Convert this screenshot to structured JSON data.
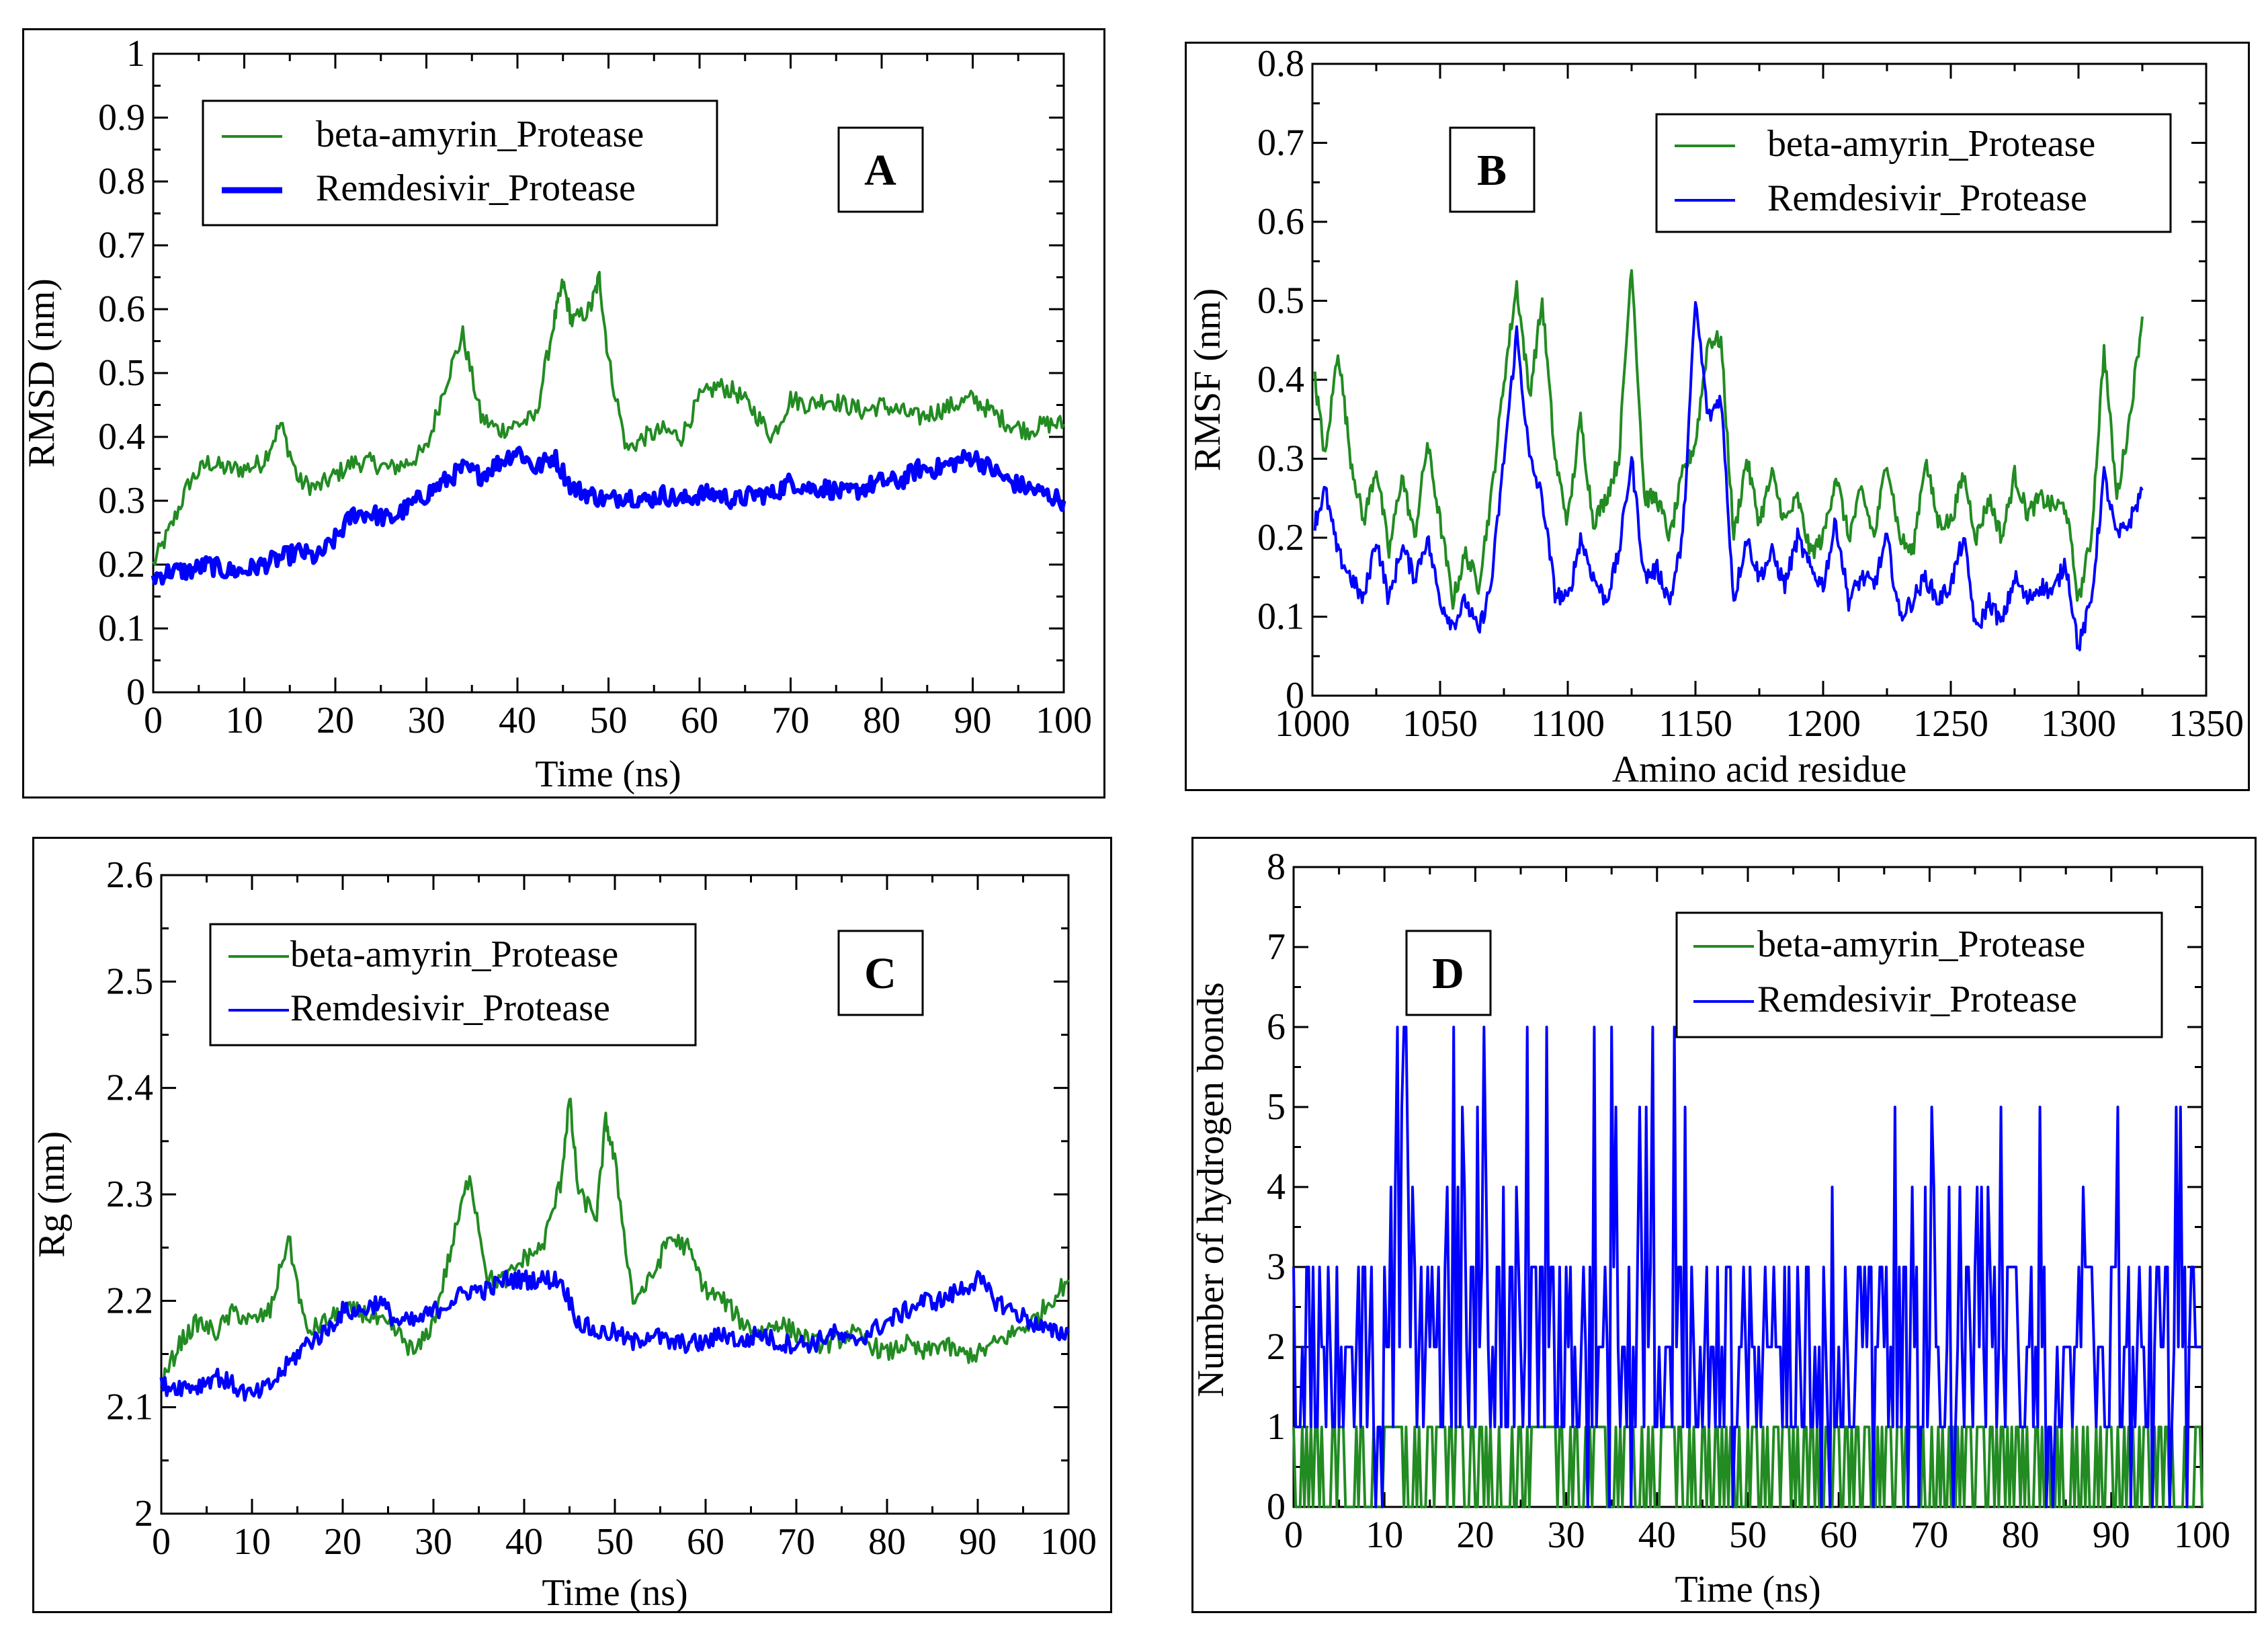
{
  "colors": {
    "green": "#228b22",
    "blue": "#0000ff",
    "axis": "#000000"
  },
  "chart_data": [
    {
      "id": "A",
      "type": "line",
      "panel_label": "A",
      "xlabel": "Time (ns)",
      "ylabel": "RMSD (nm)",
      "xlim": [
        0,
        100
      ],
      "ylim": [
        0,
        1
      ],
      "xticks": [
        0,
        10,
        20,
        30,
        40,
        50,
        60,
        70,
        80,
        90,
        100
      ],
      "xtick_labels": [
        "0",
        "10",
        "20",
        "30",
        "40",
        "50",
        "60",
        "70",
        "80",
        "90",
        "100"
      ],
      "yticks": [
        0,
        0.1,
        0.2,
        0.3,
        0.4,
        0.5,
        0.6,
        0.7,
        0.8,
        0.9,
        1
      ],
      "ytick_labels": [
        "0",
        "0.1",
        "0.2",
        "0.3",
        "0.4",
        "0.5",
        "0.6",
        "0.7",
        "0.8",
        "0.9",
        "1"
      ],
      "legend": "top-left",
      "series": [
        {
          "name": "beta-amyrin_Protease",
          "color": "#228b22",
          "x": [
            0,
            2,
            4,
            6,
            8,
            10,
            12,
            14,
            16,
            18,
            20,
            22,
            24,
            26,
            28,
            30,
            32,
            34,
            36,
            38,
            40,
            42,
            44,
            45,
            46,
            48,
            49,
            50,
            52,
            54,
            56,
            58,
            60,
            62,
            64,
            66,
            68,
            70,
            72,
            74,
            76,
            78,
            80,
            82,
            84,
            86,
            88,
            90,
            92,
            94,
            96,
            98,
            100
          ],
          "y": [
            0.2,
            0.26,
            0.33,
            0.36,
            0.35,
            0.35,
            0.36,
            0.42,
            0.33,
            0.32,
            0.34,
            0.36,
            0.36,
            0.35,
            0.36,
            0.38,
            0.48,
            0.56,
            0.43,
            0.41,
            0.42,
            0.43,
            0.58,
            0.64,
            0.58,
            0.6,
            0.65,
            0.52,
            0.38,
            0.4,
            0.41,
            0.4,
            0.46,
            0.48,
            0.47,
            0.44,
            0.4,
            0.46,
            0.45,
            0.46,
            0.45,
            0.44,
            0.45,
            0.44,
            0.43,
            0.44,
            0.45,
            0.46,
            0.44,
            0.42,
            0.41,
            0.42,
            0.42
          ]
        },
        {
          "name": "Remdesivir_Protease",
          "color": "#0000ff",
          "x": [
            0,
            2,
            4,
            6,
            8,
            10,
            12,
            14,
            16,
            18,
            20,
            22,
            24,
            26,
            28,
            30,
            32,
            34,
            36,
            38,
            40,
            42,
            44,
            46,
            48,
            50,
            52,
            54,
            56,
            58,
            60,
            62,
            64,
            66,
            68,
            70,
            72,
            74,
            76,
            78,
            80,
            82,
            84,
            86,
            88,
            90,
            92,
            94,
            96,
            98,
            100
          ],
          "y": [
            0.18,
            0.19,
            0.19,
            0.2,
            0.19,
            0.19,
            0.2,
            0.21,
            0.22,
            0.21,
            0.24,
            0.28,
            0.28,
            0.27,
            0.29,
            0.31,
            0.33,
            0.35,
            0.34,
            0.36,
            0.38,
            0.35,
            0.37,
            0.32,
            0.31,
            0.3,
            0.31,
            0.3,
            0.31,
            0.3,
            0.31,
            0.31,
            0.3,
            0.31,
            0.31,
            0.33,
            0.32,
            0.32,
            0.31,
            0.32,
            0.33,
            0.33,
            0.35,
            0.35,
            0.36,
            0.37,
            0.35,
            0.33,
            0.32,
            0.31,
            0.3
          ]
        }
      ]
    },
    {
      "id": "B",
      "type": "line",
      "panel_label": "B",
      "xlabel": "Amino acid residue",
      "ylabel": "RMSF (nm)",
      "xlim": [
        1000,
        1350
      ],
      "ylim": [
        0,
        0.8
      ],
      "xticks": [
        1000,
        1050,
        1100,
        1150,
        1200,
        1250,
        1300,
        1350
      ],
      "xtick_labels": [
        "1000",
        "1050",
        "1100",
        "1150",
        "1200",
        "1250",
        "1300",
        "1350"
      ],
      "yticks": [
        0,
        0.1,
        0.2,
        0.3,
        0.4,
        0.5,
        0.6,
        0.7,
        0.8
      ],
      "ytick_labels": [
        "0",
        "0.1",
        "0.2",
        "0.3",
        "0.4",
        "0.5",
        "0.6",
        "0.7",
        "0.8"
      ],
      "legend": "top-right",
      "series": [
        {
          "name": "beta-amyrin_Protease",
          "color": "#228b22",
          "x": [
            1001,
            1005,
            1010,
            1015,
            1020,
            1025,
            1030,
            1035,
            1040,
            1045,
            1050,
            1055,
            1060,
            1065,
            1070,
            1075,
            1080,
            1085,
            1090,
            1095,
            1100,
            1105,
            1110,
            1115,
            1120,
            1125,
            1130,
            1135,
            1140,
            1145,
            1150,
            1155,
            1160,
            1165,
            1170,
            1175,
            1180,
            1185,
            1190,
            1195,
            1200,
            1205,
            1210,
            1215,
            1220,
            1225,
            1230,
            1235,
            1240,
            1245,
            1250,
            1255,
            1260,
            1265,
            1270,
            1275,
            1280,
            1285,
            1290,
            1295,
            1300,
            1305,
            1310,
            1315,
            1320,
            1325
          ],
          "y": [
            0.4,
            0.3,
            0.44,
            0.3,
            0.22,
            0.29,
            0.18,
            0.28,
            0.2,
            0.32,
            0.22,
            0.12,
            0.18,
            0.14,
            0.25,
            0.4,
            0.52,
            0.38,
            0.5,
            0.3,
            0.22,
            0.35,
            0.22,
            0.25,
            0.3,
            0.55,
            0.25,
            0.25,
            0.2,
            0.28,
            0.32,
            0.45,
            0.45,
            0.2,
            0.3,
            0.22,
            0.28,
            0.22,
            0.25,
            0.18,
            0.2,
            0.28,
            0.2,
            0.26,
            0.2,
            0.3,
            0.2,
            0.18,
            0.3,
            0.22,
            0.22,
            0.28,
            0.2,
            0.25,
            0.2,
            0.28,
            0.23,
            0.25,
            0.24,
            0.24,
            0.12,
            0.2,
            0.44,
            0.25,
            0.35,
            0.48
          ]
        },
        {
          "name": "Remdesivir_Protease",
          "color": "#0000ff",
          "x": [
            1001,
            1005,
            1010,
            1015,
            1020,
            1025,
            1030,
            1035,
            1040,
            1045,
            1050,
            1055,
            1060,
            1065,
            1070,
            1075,
            1080,
            1085,
            1090,
            1095,
            1100,
            1105,
            1110,
            1115,
            1120,
            1125,
            1130,
            1135,
            1140,
            1145,
            1150,
            1155,
            1160,
            1165,
            1170,
            1175,
            1180,
            1185,
            1190,
            1195,
            1200,
            1205,
            1210,
            1215,
            1220,
            1225,
            1230,
            1235,
            1240,
            1245,
            1250,
            1255,
            1260,
            1265,
            1270,
            1275,
            1280,
            1285,
            1290,
            1295,
            1300,
            1305,
            1310,
            1315,
            1320,
            1325
          ],
          "y": [
            0.22,
            0.26,
            0.18,
            0.15,
            0.12,
            0.2,
            0.12,
            0.19,
            0.15,
            0.2,
            0.12,
            0.09,
            0.12,
            0.08,
            0.14,
            0.3,
            0.46,
            0.3,
            0.25,
            0.13,
            0.12,
            0.2,
            0.15,
            0.12,
            0.18,
            0.3,
            0.15,
            0.16,
            0.12,
            0.2,
            0.5,
            0.35,
            0.38,
            0.12,
            0.2,
            0.15,
            0.18,
            0.14,
            0.2,
            0.16,
            0.14,
            0.22,
            0.12,
            0.15,
            0.14,
            0.2,
            0.1,
            0.12,
            0.15,
            0.12,
            0.14,
            0.2,
            0.08,
            0.12,
            0.09,
            0.15,
            0.12,
            0.14,
            0.13,
            0.17,
            0.06,
            0.12,
            0.28,
            0.2,
            0.22,
            0.26
          ]
        }
      ]
    },
    {
      "id": "C",
      "type": "line",
      "panel_label": "C",
      "xlabel": "Time (ns)",
      "ylabel": "Rg (nm)",
      "xlim": [
        0,
        100
      ],
      "ylim": [
        2,
        2.6
      ],
      "xticks": [
        0,
        10,
        20,
        30,
        40,
        50,
        60,
        70,
        80,
        90,
        100
      ],
      "xtick_labels": [
        "0",
        "10",
        "20",
        "30",
        "40",
        "50",
        "60",
        "70",
        "80",
        "90",
        "100"
      ],
      "yticks": [
        2,
        2.1,
        2.2,
        2.3,
        2.4,
        2.5,
        2.6
      ],
      "ytick_labels": [
        "2",
        "2.1",
        "2.2",
        "2.3",
        "2.4",
        "2.5",
        "2.6"
      ],
      "legend": "top-left",
      "series": [
        {
          "name": "beta-amyrin_Protease",
          "color": "#228b22",
          "x": [
            0,
            2,
            4,
            6,
            8,
            10,
            12,
            14,
            16,
            18,
            20,
            22,
            24,
            26,
            28,
            30,
            32,
            34,
            36,
            38,
            40,
            42,
            44,
            45,
            46,
            48,
            49,
            50,
            52,
            54,
            56,
            58,
            60,
            62,
            64,
            66,
            68,
            70,
            72,
            74,
            76,
            78,
            80,
            82,
            84,
            86,
            88,
            90,
            92,
            94,
            96,
            98,
            100
          ],
          "y": [
            2.12,
            2.16,
            2.18,
            2.17,
            2.19,
            2.18,
            2.19,
            2.26,
            2.17,
            2.18,
            2.19,
            2.19,
            2.18,
            2.17,
            2.15,
            2.18,
            2.25,
            2.32,
            2.22,
            2.22,
            2.24,
            2.25,
            2.31,
            2.39,
            2.3,
            2.28,
            2.37,
            2.33,
            2.2,
            2.22,
            2.26,
            2.25,
            2.21,
            2.2,
            2.18,
            2.17,
            2.18,
            2.17,
            2.16,
            2.16,
            2.17,
            2.16,
            2.15,
            2.16,
            2.15,
            2.16,
            2.15,
            2.15,
            2.16,
            2.17,
            2.18,
            2.2,
            2.22
          ]
        },
        {
          "name": "Remdesivir_Protease",
          "color": "#0000ff",
          "x": [
            0,
            2,
            4,
            6,
            8,
            10,
            12,
            14,
            16,
            18,
            20,
            22,
            24,
            26,
            28,
            30,
            32,
            34,
            36,
            38,
            40,
            42,
            44,
            46,
            48,
            50,
            52,
            54,
            56,
            58,
            60,
            62,
            64,
            66,
            68,
            70,
            72,
            74,
            76,
            78,
            80,
            82,
            84,
            86,
            88,
            90,
            92,
            94,
            96,
            98,
            100
          ],
          "y": [
            2.12,
            2.12,
            2.12,
            2.13,
            2.12,
            2.11,
            2.12,
            2.14,
            2.16,
            2.17,
            2.19,
            2.19,
            2.2,
            2.18,
            2.18,
            2.19,
            2.2,
            2.21,
            2.21,
            2.22,
            2.22,
            2.22,
            2.22,
            2.18,
            2.17,
            2.17,
            2.16,
            2.17,
            2.16,
            2.16,
            2.16,
            2.17,
            2.16,
            2.17,
            2.16,
            2.16,
            2.16,
            2.17,
            2.16,
            2.17,
            2.18,
            2.19,
            2.2,
            2.2,
            2.21,
            2.22,
            2.2,
            2.19,
            2.18,
            2.17,
            2.17
          ]
        }
      ]
    },
    {
      "id": "D",
      "type": "line",
      "panel_label": "D",
      "xlabel": "Time (ns)",
      "ylabel": "Number of hydrogen bonds",
      "xlim": [
        0,
        100
      ],
      "ylim": [
        0,
        8
      ],
      "xticks": [
        0,
        10,
        20,
        30,
        40,
        50,
        60,
        70,
        80,
        90,
        100
      ],
      "xtick_labels": [
        "0",
        "10",
        "20",
        "30",
        "40",
        "50",
        "60",
        "70",
        "80",
        "90",
        "100"
      ],
      "yticks": [
        0,
        1,
        2,
        3,
        4,
        5,
        6,
        7,
        8
      ],
      "ytick_labels": [
        "0",
        "1",
        "2",
        "3",
        "4",
        "5",
        "6",
        "7",
        "8"
      ],
      "legend": "top-right",
      "series": [
        {
          "name": "beta-amyrin_Protease",
          "color": "#228b22",
          "x": [
            0,
            10,
            20,
            30,
            40,
            50,
            60,
            70,
            80,
            90,
            100
          ],
          "y": [
            0,
            1,
            0,
            1,
            0,
            1,
            0,
            1,
            0,
            1,
            0
          ]
        },
        {
          "name": "Remdesivir_Protease",
          "color": "#0000ff",
          "x": [
            0,
            10,
            20,
            30,
            40,
            50,
            60,
            70,
            80,
            90,
            100
          ],
          "y": [
            2,
            3,
            3,
            3,
            2,
            2,
            2,
            2,
            2,
            2,
            2
          ]
        }
      ]
    }
  ]
}
